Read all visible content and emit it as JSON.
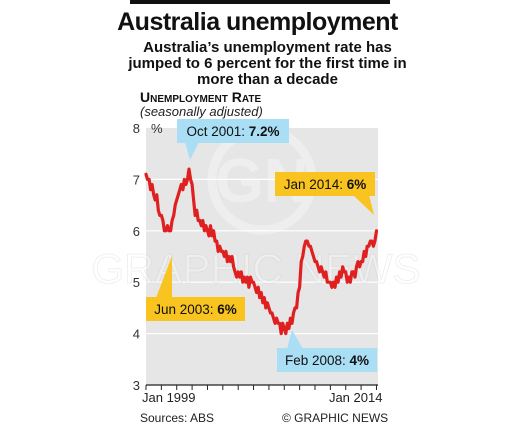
{
  "title": "Australia unemployment",
  "subtitle": "Australia’s unemployment rate has jumped to 6 percent for the first time in more than a decade",
  "section_label": "Unemployment Rate",
  "note": "(seasonally adjusted)",
  "source": "Sources: ABS",
  "credit": "© GRAPHIC NEWS",
  "watermark": "GRAPHIC NEWS",
  "watermark_logo": "GN",
  "colors": {
    "line": "#e02020",
    "chart_bg": "#e6e6e6",
    "callout_blue": "#a9def5",
    "callout_yellow": "#f9c41f"
  },
  "chart_data": {
    "type": "line",
    "title": "Australia unemployment",
    "ylabel": "Unemployment Rate",
    "y_unit": "%",
    "ylim": [
      3,
      8
    ],
    "xlim": [
      1999.0,
      2014.1
    ],
    "grid": "horizontal",
    "yticks": [
      3,
      4,
      5,
      6,
      7,
      8
    ],
    "ytick_labels": [
      "3",
      "4",
      "5",
      "6",
      "7",
      "8"
    ],
    "xtick_labels": [
      {
        "x": 1999.0,
        "label": "Jan 1999"
      },
      {
        "x": 2014.0,
        "label": "Jan 2014"
      }
    ],
    "series": [
      {
        "values": [
          [
            1999.0,
            7.1
          ],
          [
            1999.1,
            7.0
          ],
          [
            1999.2,
            7.0
          ],
          [
            1999.3,
            6.8
          ],
          [
            1999.4,
            6.9
          ],
          [
            1999.5,
            6.7
          ],
          [
            1999.6,
            6.6
          ],
          [
            1999.7,
            6.7
          ],
          [
            1999.8,
            6.4
          ],
          [
            1999.9,
            6.3
          ],
          [
            2000.0,
            6.3
          ],
          [
            2000.1,
            6.2
          ],
          [
            2000.2,
            6.0
          ],
          [
            2000.3,
            6.0
          ],
          [
            2000.4,
            6.1
          ],
          [
            2000.5,
            6.0
          ],
          [
            2000.6,
            6.0
          ],
          [
            2000.7,
            6.2
          ],
          [
            2000.8,
            6.3
          ],
          [
            2000.9,
            6.5
          ],
          [
            2001.0,
            6.6
          ],
          [
            2001.1,
            6.7
          ],
          [
            2001.2,
            6.8
          ],
          [
            2001.3,
            6.9
          ],
          [
            2001.4,
            6.8
          ],
          [
            2001.5,
            7.0
          ],
          [
            2001.6,
            6.9
          ],
          [
            2001.7,
            7.0
          ],
          [
            2001.8,
            7.2
          ],
          [
            2001.9,
            7.0
          ],
          [
            2002.0,
            6.9
          ],
          [
            2002.1,
            6.6
          ],
          [
            2002.2,
            6.3
          ],
          [
            2002.3,
            6.4
          ],
          [
            2002.4,
            6.2
          ],
          [
            2002.5,
            6.2
          ],
          [
            2002.6,
            6.1
          ],
          [
            2002.7,
            6.2
          ],
          [
            2002.8,
            6.0
          ],
          [
            2002.9,
            6.1
          ],
          [
            2003.0,
            6.0
          ],
          [
            2003.1,
            5.9
          ],
          [
            2003.2,
            6.1
          ],
          [
            2003.3,
            5.9
          ],
          [
            2003.4,
            6.0
          ],
          [
            2003.5,
            5.8
          ],
          [
            2003.6,
            5.8
          ],
          [
            2003.7,
            5.6
          ],
          [
            2003.8,
            5.7
          ],
          [
            2003.9,
            5.6
          ],
          [
            2004.0,
            5.6
          ],
          [
            2004.1,
            5.5
          ],
          [
            2004.2,
            5.6
          ],
          [
            2004.3,
            5.4
          ],
          [
            2004.4,
            5.5
          ],
          [
            2004.5,
            5.4
          ],
          [
            2004.6,
            5.5
          ],
          [
            2004.7,
            5.3
          ],
          [
            2004.8,
            5.2
          ],
          [
            2004.9,
            5.1
          ],
          [
            2005.0,
            5.2
          ],
          [
            2005.1,
            5.1
          ],
          [
            2005.2,
            5.2
          ],
          [
            2005.3,
            5.0
          ],
          [
            2005.4,
            5.1
          ],
          [
            2005.5,
            5.0
          ],
          [
            2005.6,
            5.1
          ],
          [
            2005.7,
            4.9
          ],
          [
            2005.8,
            5.1
          ],
          [
            2005.9,
            5.0
          ],
          [
            2006.0,
            5.0
          ],
          [
            2006.1,
            4.9
          ],
          [
            2006.2,
            4.8
          ],
          [
            2006.3,
            4.9
          ],
          [
            2006.4,
            4.7
          ],
          [
            2006.5,
            4.8
          ],
          [
            2006.6,
            4.6
          ],
          [
            2006.7,
            4.7
          ],
          [
            2006.8,
            4.5
          ],
          [
            2006.9,
            4.6
          ],
          [
            2007.0,
            4.5
          ],
          [
            2007.1,
            4.4
          ],
          [
            2007.2,
            4.4
          ],
          [
            2007.3,
            4.3
          ],
          [
            2007.4,
            4.2
          ],
          [
            2007.5,
            4.3
          ],
          [
            2007.6,
            4.2
          ],
          [
            2007.7,
            4.2
          ],
          [
            2007.8,
            4.0
          ],
          [
            2007.9,
            4.2
          ],
          [
            2008.0,
            4.1
          ],
          [
            2008.1,
            4.0
          ],
          [
            2008.2,
            4.2
          ],
          [
            2008.3,
            4.1
          ],
          [
            2008.4,
            4.3
          ],
          [
            2008.5,
            4.2
          ],
          [
            2008.6,
            4.4
          ],
          [
            2008.7,
            4.5
          ],
          [
            2008.8,
            4.5
          ],
          [
            2008.9,
            4.8
          ],
          [
            2009.0,
            4.9
          ],
          [
            2009.1,
            5.4
          ],
          [
            2009.2,
            5.5
          ],
          [
            2009.3,
            5.7
          ],
          [
            2009.4,
            5.8
          ],
          [
            2009.5,
            5.8
          ],
          [
            2009.6,
            5.7
          ],
          [
            2009.7,
            5.7
          ],
          [
            2009.8,
            5.6
          ],
          [
            2009.9,
            5.5
          ],
          [
            2010.0,
            5.4
          ],
          [
            2010.1,
            5.4
          ],
          [
            2010.2,
            5.3
          ],
          [
            2010.3,
            5.2
          ],
          [
            2010.4,
            5.3
          ],
          [
            2010.5,
            5.2
          ],
          [
            2010.6,
            5.1
          ],
          [
            2010.7,
            5.2
          ],
          [
            2010.8,
            5.0
          ],
          [
            2010.9,
            5.0
          ],
          [
            2011.0,
            5.0
          ],
          [
            2011.1,
            4.9
          ],
          [
            2011.2,
            5.0
          ],
          [
            2011.3,
            4.9
          ],
          [
            2011.4,
            5.1
          ],
          [
            2011.5,
            5.0
          ],
          [
            2011.6,
            5.2
          ],
          [
            2011.7,
            5.1
          ],
          [
            2011.8,
            5.3
          ],
          [
            2011.9,
            5.2
          ],
          [
            2012.0,
            5.2
          ],
          [
            2012.1,
            5.0
          ],
          [
            2012.2,
            5.1
          ],
          [
            2012.3,
            5.0
          ],
          [
            2012.4,
            5.2
          ],
          [
            2012.5,
            5.2
          ],
          [
            2012.6,
            5.1
          ],
          [
            2012.7,
            5.3
          ],
          [
            2012.8,
            5.4
          ],
          [
            2012.9,
            5.3
          ],
          [
            2013.0,
            5.4
          ],
          [
            2013.1,
            5.4
          ],
          [
            2013.2,
            5.6
          ],
          [
            2013.3,
            5.5
          ],
          [
            2013.4,
            5.7
          ],
          [
            2013.5,
            5.7
          ],
          [
            2013.6,
            5.8
          ],
          [
            2013.7,
            5.8
          ],
          [
            2013.8,
            5.7
          ],
          [
            2013.9,
            5.8
          ],
          [
            2014.0,
            6.0
          ]
        ]
      }
    ],
    "annotations": [
      {
        "x": 2001.8,
        "y": 7.2,
        "label_plain": "Oct 2001: ",
        "label_bold": "7.2%",
        "style": "blue"
      },
      {
        "x": 2014.0,
        "y": 6.0,
        "label_plain": "Jan 2014: ",
        "label_bold": "6%",
        "style": "yellow"
      },
      {
        "x": 2003.0,
        "y": 6.0,
        "label_plain": "Jun 2003: ",
        "label_bold": "6%",
        "style": "yellow"
      },
      {
        "x": 2008.1,
        "y": 4.0,
        "label_plain": "Feb 2008: ",
        "label_bold": "4%",
        "style": "blue"
      }
    ]
  }
}
